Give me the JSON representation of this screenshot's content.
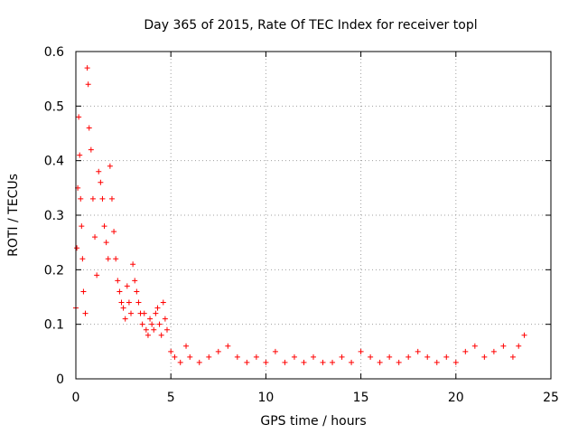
{
  "chart_data": {
    "type": "scatter",
    "title": "Day 365 of 2015, Rate Of TEC Index for receiver topl",
    "xlabel": "GPS time / hours",
    "ylabel": "ROTI / TECUs",
    "xlim": [
      0,
      25
    ],
    "ylim": [
      0,
      0.6
    ],
    "x_ticks": [
      0,
      5,
      10,
      15,
      20,
      25
    ],
    "x_tick_labels": [
      "0",
      "5",
      "10",
      "15",
      "20",
      "25"
    ],
    "y_ticks": [
      0,
      0.1,
      0.2,
      0.3,
      0.4,
      0.5,
      0.6
    ],
    "y_tick_labels": [
      "0",
      "0.1",
      "0.2",
      "0.3",
      "0.4",
      "0.5",
      "0.6"
    ],
    "grid": true,
    "marker": "+",
    "series": [
      {
        "name": "ROTI",
        "color": "#ff0000",
        "x": [
          0.0,
          0.05,
          0.1,
          0.15,
          0.2,
          0.25,
          0.3,
          0.35,
          0.4,
          0.5,
          0.6,
          0.65,
          0.7,
          0.8,
          0.9,
          1.0,
          1.1,
          1.2,
          1.3,
          1.4,
          1.5,
          1.6,
          1.7,
          1.8,
          1.9,
          2.0,
          2.1,
          2.2,
          2.3,
          2.4,
          2.5,
          2.6,
          2.7,
          2.8,
          2.9,
          3.0,
          3.1,
          3.2,
          3.3,
          3.4,
          3.5,
          3.6,
          3.7,
          3.8,
          3.9,
          4.0,
          4.1,
          4.2,
          4.3,
          4.4,
          4.5,
          4.6,
          4.7,
          4.8,
          5.0,
          5.2,
          5.5,
          5.8,
          6.0,
          6.5,
          7.0,
          7.5,
          8.0,
          8.5,
          9.0,
          9.5,
          10.0,
          10.5,
          11.0,
          11.5,
          12.0,
          12.5,
          13.0,
          13.5,
          14.0,
          14.5,
          15.0,
          15.5,
          16.0,
          16.5,
          17.0,
          17.5,
          18.0,
          18.5,
          19.0,
          19.5,
          20.0,
          20.5,
          21.0,
          21.5,
          22.0,
          22.5,
          23.0,
          23.3,
          23.6
        ],
        "y": [
          0.13,
          0.24,
          0.35,
          0.48,
          0.41,
          0.33,
          0.28,
          0.22,
          0.16,
          0.12,
          0.57,
          0.54,
          0.46,
          0.42,
          0.33,
          0.26,
          0.19,
          0.38,
          0.36,
          0.33,
          0.28,
          0.25,
          0.22,
          0.39,
          0.33,
          0.27,
          0.22,
          0.18,
          0.16,
          0.14,
          0.13,
          0.11,
          0.17,
          0.14,
          0.12,
          0.21,
          0.18,
          0.16,
          0.14,
          0.12,
          0.1,
          0.12,
          0.09,
          0.08,
          0.11,
          0.1,
          0.09,
          0.12,
          0.13,
          0.1,
          0.08,
          0.14,
          0.11,
          0.09,
          0.05,
          0.04,
          0.03,
          0.06,
          0.04,
          0.03,
          0.04,
          0.05,
          0.06,
          0.04,
          0.03,
          0.04,
          0.03,
          0.05,
          0.03,
          0.04,
          0.03,
          0.04,
          0.03,
          0.03,
          0.04,
          0.03,
          0.05,
          0.04,
          0.03,
          0.04,
          0.03,
          0.04,
          0.05,
          0.04,
          0.03,
          0.04,
          0.03,
          0.05,
          0.06,
          0.04,
          0.05,
          0.06,
          0.04,
          0.06,
          0.08
        ]
      }
    ]
  }
}
